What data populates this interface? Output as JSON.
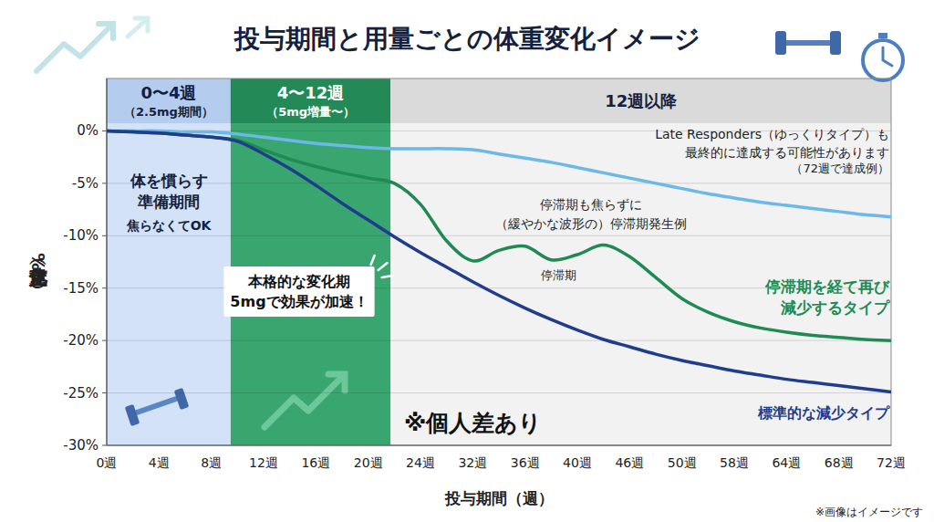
{
  "chart_data": {
    "type": "line",
    "title": "投与期間と用量ごとの体重変化イメージ",
    "x_label": "投与期間（週）",
    "y_label": "体重変化（%）",
    "categories": [
      "0週",
      null,
      "4週",
      null,
      "8週",
      null,
      "12週",
      null,
      "16週",
      null,
      "20週",
      null,
      "24週",
      null,
      "32週",
      null,
      "36週",
      null,
      "40週",
      null,
      "46週",
      null,
      "50週",
      null,
      "58週",
      null,
      "64週",
      null,
      "68週",
      null,
      "72週"
    ],
    "series": [
      {
        "name": "標準的な減少タイプ",
        "color": "#1f3d8c",
        "values": [
          0,
          -0.1,
          -0.2,
          -0.4,
          -0.6,
          -1.0,
          -2.2,
          -3.6,
          -5.2,
          -6.9,
          -8.5,
          -10.1,
          -11.6,
          -13.0,
          -14.4,
          -15.7,
          -16.9,
          -18.0,
          -19.0,
          -19.9,
          -20.6,
          -21.3,
          -21.9,
          -22.4,
          -22.9,
          -23.3,
          -23.7,
          -24.0,
          -24.3,
          -24.6,
          -24.9
        ]
      },
      {
        "name": "停滞期を経て再び減少するタイプ",
        "color": "#1f8a52",
        "values": [
          0,
          -0.1,
          -0.2,
          -0.4,
          -0.6,
          -0.9,
          -1.8,
          -2.7,
          -3.4,
          -4.0,
          -4.5,
          -5.0,
          -7.0,
          -10.5,
          -12.4,
          -11.4,
          -11.0,
          -12.3,
          -11.8,
          -10.9,
          -12.0,
          -14.0,
          -16.0,
          -17.3,
          -18.2,
          -18.8,
          -19.2,
          -19.5,
          -19.7,
          -19.9,
          -20.0
        ]
      },
      {
        "name": "Late Responders（ゆっくりタイプ）も最終的に達成する可能性があります",
        "color": "#6cb8e8",
        "values": [
          0,
          0,
          0,
          -0.1,
          -0.1,
          -0.3,
          -0.6,
          -0.9,
          -1.2,
          -1.4,
          -1.6,
          -1.7,
          -1.7,
          -1.7,
          -1.8,
          -2.2,
          -2.6,
          -3.0,
          -3.5,
          -4.0,
          -4.5,
          -5.0,
          -5.5,
          -6.0,
          -6.4,
          -6.8,
          -7.1,
          -7.4,
          -7.7,
          -8.0,
          -8.2
        ]
      }
    ],
    "ylim": [
      -30,
      5
    ],
    "yticks": [
      {
        "value": 0,
        "label": "0%"
      },
      {
        "value": -5,
        "label": "-5%"
      },
      {
        "value": -10,
        "label": "-10%"
      },
      {
        "value": -15,
        "label": "-15%"
      },
      {
        "value": -20,
        "label": "-20%"
      },
      {
        "value": -25,
        "label": "-25%"
      },
      {
        "value": -30,
        "label": "-30%"
      }
    ],
    "grid": true,
    "periods": [
      {
        "label": "0〜4週",
        "sublabel": "（2.5mg期間）"
      },
      {
        "label": "4〜12週",
        "sublabel": "（5mg増量〜）"
      },
      {
        "label": "12週以降"
      }
    ],
    "annotations": [
      {
        "lines": [
          "体を慣らす",
          "準備期間"
        ]
      },
      {
        "text": "焦らなくてOK"
      },
      {
        "lines": [
          "本格的な変化期",
          "5mgで効果が加速！"
        ]
      },
      {
        "lines": [
          "停滞期も焦らずに",
          "（緩やかな波形の）停滞期発生例"
        ]
      },
      {
        "text": "停滞期"
      },
      {
        "text": "※個人差あり"
      },
      {
        "text": "（72週で達成例）"
      }
    ],
    "footnote": "※画像はイメージです"
  }
}
